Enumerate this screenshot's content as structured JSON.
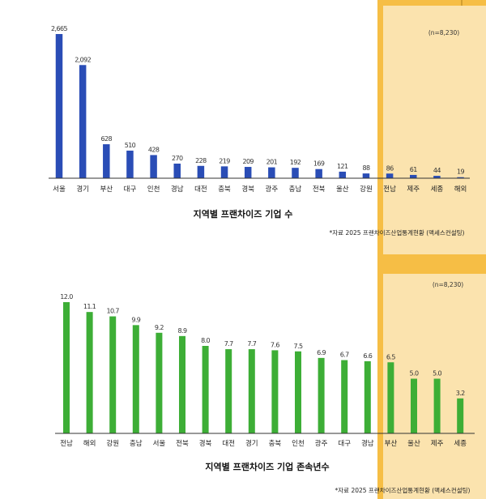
{
  "colors": {
    "highlight_band": "#FBE3AE",
    "highlight_band_edge": "#F6BE45",
    "bar_blue": "#2A4DB6",
    "bar_green": "#3DAE36"
  },
  "chart_data": [
    {
      "type": "bar",
      "title": "지역별 프랜차이즈 기업 수",
      "note": "(n=8,230)",
      "source": "*자료 2025 프랜차이즈산업통계현황 (맥세스컨설팅)",
      "categories": [
        "서울",
        "경기",
        "부산",
        "대구",
        "인천",
        "경남",
        "대전",
        "충북",
        "경북",
        "광주",
        "충남",
        "전북",
        "울산",
        "강원",
        "전남",
        "제주",
        "세종",
        "해외"
      ],
      "values": [
        2665,
        2092,
        628,
        510,
        428,
        270,
        228,
        219,
        209,
        201,
        192,
        169,
        121,
        88,
        86,
        61,
        44,
        19
      ],
      "value_labels": [
        "2,665",
        "2,092",
        "628",
        "510",
        "428",
        "270",
        "228",
        "219",
        "209",
        "201",
        "192",
        "169",
        "121",
        "88",
        "86",
        "61",
        "44",
        "19"
      ],
      "ylim": [
        0,
        2800
      ],
      "color": "#2A4DB6",
      "highlight_categories": [
        "전남",
        "제주",
        "세종",
        "해외"
      ]
    },
    {
      "type": "bar",
      "title": "지역별 프랜차이즈 기업 존속년수",
      "note": "(n=8,230)",
      "source": "*자료 2025 프랜차이즈산업통계현황 (맥세스컨설팅)",
      "categories": [
        "전남",
        "해외",
        "강원",
        "충남",
        "서울",
        "전북",
        "경북",
        "대전",
        "경기",
        "충북",
        "인천",
        "광주",
        "대구",
        "경남",
        "부산",
        "울산",
        "제주",
        "세종"
      ],
      "values": [
        12.0,
        11.1,
        10.7,
        9.9,
        9.2,
        8.9,
        8.0,
        7.7,
        7.7,
        7.6,
        7.5,
        6.9,
        6.7,
        6.6,
        6.5,
        5.0,
        5.0,
        3.2
      ],
      "value_labels": [
        "12.0",
        "11.1",
        "10.7",
        "9.9",
        "9.2",
        "8.9",
        "8.0",
        "7.7",
        "7.7",
        "7.6",
        "7.5",
        "6.9",
        "6.7",
        "6.6",
        "6.5",
        "5.0",
        "5.0",
        "3.2"
      ],
      "ylim": [
        0,
        12.0
      ],
      "color": "#3DAE36",
      "highlight_categories": [
        "울산",
        "제주",
        "세종"
      ]
    }
  ]
}
